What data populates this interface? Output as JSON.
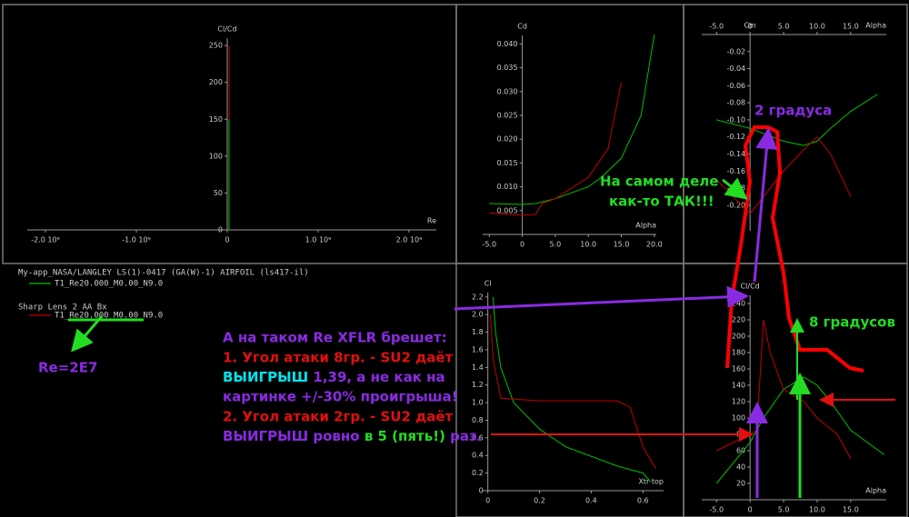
{
  "chart_data": [
    {
      "type": "line",
      "y_label": "Cl/Cd",
      "x_label": "Re",
      "xlim": [
        -2200000000,
        2300000000
      ],
      "ylim": [
        0,
        260
      ],
      "xticks": [
        {
          "value": -2000000000,
          "label": "-2.0 10⁹"
        },
        {
          "value": -1000000000,
          "label": "-1.0 10⁹"
        },
        0,
        {
          "value": 1000000000,
          "label": "1.0 10⁹"
        },
        {
          "value": 2000000000,
          "label": "2.0 10⁹"
        }
      ],
      "yticks": [
        0,
        50,
        100,
        150,
        200,
        250
      ],
      "series": [
        {
          "color": "#c00000",
          "x": [
            20000000,
            20000000
          ],
          "values": [
            0,
            250
          ]
        },
        {
          "color": "#00c000",
          "x": [
            20000000,
            20000000
          ],
          "values": [
            0,
            150
          ]
        }
      ]
    },
    {
      "type": "line",
      "y_label": "Cd",
      "x_label": "Alpha",
      "xlim": [
        -6,
        20.3
      ],
      "ylim": [
        0,
        0.0418
      ],
      "xticks": [
        {
          "value": -5,
          "label": "-5.0"
        },
        0,
        {
          "value": 5,
          "label": "5.0"
        },
        {
          "value": 10,
          "label": "10.0"
        },
        {
          "value": 15,
          "label": "15.0"
        },
        {
          "value": 20,
          "label": "20.0"
        }
      ],
      "yticks": [
        {
          "value": 0.005,
          "label": "0.005"
        },
        {
          "value": 0.01,
          "label": "0.010"
        },
        {
          "value": 0.015,
          "label": "0.015"
        },
        {
          "value": 0.02,
          "label": "0.020"
        },
        {
          "value": 0.025,
          "label": "0.025"
        },
        {
          "value": 0.03,
          "label": "0.030"
        },
        {
          "value": 0.035,
          "label": "0.035"
        },
        {
          "value": 0.04,
          "label": "0.040"
        }
      ],
      "series": [
        {
          "color": "#00c000",
          "x": [
            -5,
            0,
            2,
            5,
            10,
            12,
            15,
            18,
            20
          ],
          "values": [
            0.0065,
            0.0063,
            0.0065,
            0.0075,
            0.01,
            0.012,
            0.016,
            0.025,
            0.042
          ]
        },
        {
          "color": "#c00000",
          "x": [
            -5,
            0,
            2,
            3,
            5,
            10,
            13,
            15
          ],
          "values": [
            0.0045,
            0.004,
            0.0042,
            0.0065,
            0.0075,
            0.012,
            0.018,
            0.032
          ]
        }
      ]
    },
    {
      "type": "line",
      "y_label": "Cm",
      "x_label": "Alpha",
      "xlim": [
        -7.2,
        20.3
      ],
      "ylim": [
        -0.23,
        0
      ],
      "xticks": [
        {
          "value": -5,
          "label": "-5.0"
        },
        0,
        {
          "value": 5,
          "label": "5.0"
        },
        {
          "value": 10,
          "label": "10.0"
        },
        {
          "value": 15,
          "label": "15.0"
        }
      ],
      "yticks": [
        -0.02,
        -0.04,
        -0.06,
        -0.08,
        {
          "value": -0.1,
          "label": "-0.10"
        },
        -0.12,
        -0.14,
        -0.16,
        -0.18,
        {
          "value": -0.2,
          "label": "-0.20"
        }
      ],
      "series": [
        {
          "color": "#00c000",
          "x": [
            -5,
            0,
            5,
            8,
            10,
            12,
            15,
            19
          ],
          "values": [
            -0.1,
            -0.11,
            -0.125,
            -0.13,
            -0.125,
            -0.11,
            -0.09,
            -0.07
          ]
        },
        {
          "color": "#c00000",
          "x": [
            -5,
            0,
            2,
            5,
            8,
            10,
            12,
            15
          ],
          "values": [
            -0.17,
            -0.21,
            -0.19,
            -0.16,
            -0.135,
            -0.12,
            -0.14,
            -0.19
          ]
        }
      ]
    },
    {
      "type": "line",
      "y_label": "Cl",
      "x_label": "Xtr top",
      "xlim": [
        -0.02,
        0.68
      ],
      "ylim": [
        0,
        2.25
      ],
      "xticks": [
        0,
        0.2,
        0.4,
        0.6
      ],
      "yticks": [
        0,
        0.2,
        0.4,
        0.6,
        0.8,
        {
          "value": 1,
          "label": "1.0"
        },
        1.2,
        1.4,
        1.6,
        1.8,
        {
          "value": 2,
          "label": "2.0"
        },
        2.2
      ],
      "series": [
        {
          "color": "#00c000",
          "x": [
            0.02,
            0.03,
            0.05,
            0.1,
            0.2,
            0.3,
            0.5,
            0.6,
            0.63
          ],
          "values": [
            2.2,
            1.8,
            1.4,
            1.0,
            0.7,
            0.5,
            0.28,
            0.2,
            0.1
          ]
        },
        {
          "color": "#c00000",
          "x": [
            0.01,
            0.02,
            0.05,
            0.2,
            0.5,
            0.55,
            0.6,
            0.65
          ],
          "values": [
            2.0,
            1.5,
            1.05,
            1.02,
            1.02,
            0.95,
            0.5,
            0.25
          ]
        }
      ]
    },
    {
      "type": "line",
      "y_label": "Cl/Cd",
      "x_label": "Alpha",
      "xlim": [
        -7.2,
        20.3
      ],
      "ylim": [
        0,
        250
      ],
      "xticks": [
        {
          "value": -5,
          "label": "-5.0"
        },
        0,
        {
          "value": 5,
          "label": "5.0"
        },
        {
          "value": 10,
          "label": "10.0"
        },
        {
          "value": 15,
          "label": "15.0"
        }
      ],
      "yticks": [
        20,
        40,
        60,
        80,
        100,
        120,
        140,
        160,
        180,
        200,
        220,
        240
      ],
      "series": [
        {
          "color": "#00c000",
          "x": [
            -5,
            0,
            2,
            5,
            8,
            10,
            12,
            15,
            20
          ],
          "values": [
            20,
            70,
            100,
            135,
            150,
            140,
            120,
            85,
            55
          ]
        },
        {
          "color": "#c00000",
          "x": [
            -5,
            0,
            1,
            2,
            3,
            5,
            8,
            10,
            13,
            15
          ],
          "values": [
            60,
            80,
            85,
            220,
            180,
            135,
            120,
            100,
            80,
            50
          ]
        }
      ]
    }
  ],
  "legend": [
    {
      "name": "My-app_NASA/LANGLEY LS(1)-0417 (GA(W)-1) AIRFOIL (ls417-il)",
      "entry": "T1_Re20.000_M0.00_N9.0",
      "color": "#00c000"
    },
    {
      "name": "Sharp Lens 2 AA Bx",
      "entry": "T1_Re20.000_M0.00_N9.0",
      "color": "#c00000"
    }
  ],
  "annotations": {
    "deg2": "2 градуса",
    "actually": [
      "На самом деле",
      "как-то ТАК!!!"
    ],
    "deg8": "8 градусов",
    "re": "Re=2E7",
    "claim": [
      [
        "А на таком Re XFLR брешет:"
      ],
      [
        "1. Угол атаки 8гр. - SU2 даёт"
      ],
      [
        "ВЫИГРЫШ",
        " 1,39, а не как на"
      ],
      [
        "картинке +/-30% проигрыша!"
      ],
      [
        "2. Угол атаки 2гр. - SU2 даёт"
      ],
      [
        "ВЫИГРЫШ ровно ",
        "в 5 (пять!)",
        " раз."
      ]
    ]
  }
}
